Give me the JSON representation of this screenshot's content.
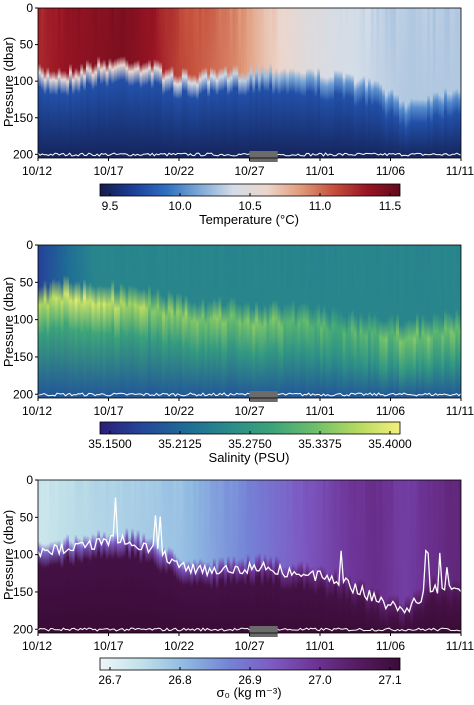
{
  "colors": {
    "temperature_scale": [
      "#131c4a",
      "#1b3f9a",
      "#2f6fc2",
      "#7fa9d6",
      "#d3dde8",
      "#ecd6cc",
      "#e19c7c",
      "#c5503c",
      "#9a1524",
      "#620a1b"
    ],
    "salinity_scale": [
      "#2a1e78",
      "#24479a",
      "#1f6c96",
      "#2a8b8a",
      "#3ba37a",
      "#6cbf6b",
      "#b5d95f",
      "#f3f07a"
    ],
    "density_scale": [
      "#eef6f8",
      "#bfe0e8",
      "#8fb8e2",
      "#7484d6",
      "#7d5bc4",
      "#6e3497",
      "#561c62",
      "#3a0b36"
    ],
    "contour": "#ffffff",
    "gap_marker": "#6b6b6b"
  },
  "chart_data": [
    {
      "type": "heatmap",
      "variable": "temperature",
      "x": [
        "10/12",
        "10/17",
        "10/22",
        "10/27",
        "11/01",
        "11/06",
        "11/11"
      ],
      "xlim": [
        "10/12",
        "11/11"
      ],
      "ylabel": "Pressure (dbar)",
      "ylim": [
        0,
        205
      ],
      "yticks": [
        0,
        50,
        100,
        150,
        200
      ],
      "y_reversed": true,
      "colorbar": {
        "label": "Temperature (°C)",
        "ticks": [
          "9.5",
          "10.0",
          "10.5",
          "11.0",
          "11.5"
        ],
        "range": [
          9.5,
          11.5
        ]
      },
      "mixed_layer": {
        "dates": [
          "10/12",
          "10/14",
          "10/16",
          "10/18",
          "10/20",
          "10/22",
          "10/24",
          "10/26",
          "10/28",
          "10/30",
          "11/01",
          "11/03",
          "11/05",
          "11/07",
          "11/09",
          "11/11"
        ],
        "depth": [
          95,
          95,
          85,
          80,
          85,
          100,
          100,
          95,
          90,
          95,
          100,
          105,
          115,
          140,
          130,
          120
        ],
        "surface_value": [
          11.2,
          11.3,
          11.35,
          11.4,
          11.3,
          11.1,
          11.0,
          10.9,
          10.7,
          10.55,
          10.45,
          10.4,
          10.35,
          10.3,
          10.3,
          10.3
        ],
        "deep_value": 9.8
      },
      "data_gap": [
        "10/27",
        "10/29"
      ]
    },
    {
      "type": "heatmap",
      "variable": "salinity",
      "x": [
        "10/12",
        "10/17",
        "10/22",
        "10/27",
        "11/01",
        "11/06",
        "11/11"
      ],
      "xlim": [
        "10/12",
        "11/11"
      ],
      "ylabel": "Pressure (dbar)",
      "ylim": [
        0,
        205
      ],
      "yticks": [
        0,
        50,
        100,
        150,
        200
      ],
      "y_reversed": true,
      "colorbar": {
        "label": "Salinity (PSU)",
        "ticks": [
          "35.1500",
          "35.2125",
          "35.2750",
          "35.3375",
          "35.4000"
        ],
        "range": [
          35.15,
          35.4
        ]
      },
      "mixed_layer": {
        "dates": [
          "10/12",
          "10/14",
          "10/16",
          "10/18",
          "10/20",
          "10/22",
          "10/24",
          "10/26",
          "10/28",
          "10/30",
          "11/01",
          "11/03",
          "11/05",
          "11/07",
          "11/09",
          "11/11"
        ],
        "depth": [
          80,
          70,
          75,
          80,
          85,
          95,
          100,
          100,
          105,
          105,
          110,
          115,
          120,
          125,
          120,
          115
        ],
        "surface_value": [
          35.18,
          35.22,
          35.25,
          35.25,
          35.25,
          35.25,
          35.25,
          35.25,
          35.25,
          35.25,
          35.25,
          35.25,
          35.25,
          35.25,
          35.25,
          35.25
        ],
        "subsurface_max": [
          35.36,
          35.38,
          35.38,
          35.36,
          35.35,
          35.34,
          35.34,
          35.33,
          35.33,
          35.32,
          35.31,
          35.31,
          35.32,
          35.33,
          35.33,
          35.32
        ]
      },
      "data_gap": [
        "10/27",
        "10/29"
      ]
    },
    {
      "type": "heatmap",
      "variable": "potential density",
      "x": [
        "10/12",
        "10/17",
        "10/22",
        "10/27",
        "11/01",
        "11/06",
        "11/11"
      ],
      "xlim": [
        "10/12",
        "11/11"
      ],
      "ylabel": "Pressure (dbar)",
      "ylim": [
        0,
        205
      ],
      "yticks": [
        0,
        50,
        100,
        150,
        200
      ],
      "y_reversed": true,
      "colorbar": {
        "label": "σ₀ (kg m⁻³)",
        "ticks": [
          "26.7",
          "26.8",
          "26.9",
          "27.0",
          "27.1"
        ],
        "range": [
          26.7,
          27.1
        ]
      },
      "mixed_layer": {
        "dates": [
          "10/12",
          "10/14",
          "10/16",
          "10/18",
          "10/20",
          "10/22",
          "10/24",
          "10/26",
          "10/28",
          "10/30",
          "11/01",
          "11/03",
          "11/05",
          "11/07",
          "11/09",
          "11/11"
        ],
        "depth": [
          100,
          90,
          85,
          80,
          90,
          115,
          120,
          120,
          115,
          125,
          130,
          140,
          160,
          175,
          145,
          150
        ],
        "surface_value": [
          26.74,
          26.76,
          26.77,
          26.78,
          26.79,
          26.8,
          26.83,
          26.86,
          26.89,
          26.92,
          26.95,
          26.98,
          27.0,
          26.97,
          27.0,
          27.02
        ],
        "deep_value": 27.08
      },
      "data_gap": [
        "10/27",
        "10/29"
      ]
    }
  ]
}
